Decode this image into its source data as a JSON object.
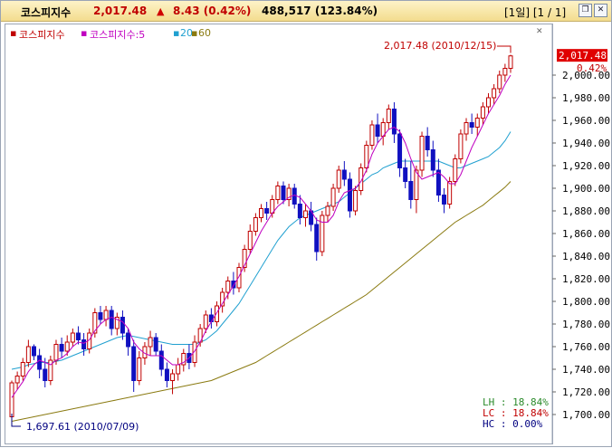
{
  "header": {
    "name": "코스피지수",
    "price": "2,017.48",
    "change": "8.43 (0.42%)",
    "volume": "488,517 (123.84%)",
    "period": "[1일] [1 / 1]"
  },
  "legend": [
    {
      "label": "코스피지수",
      "color": "#c00000"
    },
    {
      "label": "코스피지수:5",
      "color": "#c000c0"
    },
    {
      "label": "20",
      "color": "#20a0d0"
    },
    {
      "label": "60",
      "color": "#8a7a10"
    }
  ],
  "price_badge": {
    "value": "2,017.48",
    "pct": "0.42%"
  },
  "high_annotation": "2,017.48 (2010/12/15)",
  "low_annotation": "1,697.61 (2010/07/09)",
  "stats": [
    {
      "label": "LH",
      "value": "18.84%",
      "color": "#2a8a2a"
    },
    {
      "label": "LC",
      "value": "18.84%",
      "color": "#c00000"
    },
    {
      "label": "HC",
      "value": "0.00%",
      "color": "#000080"
    }
  ],
  "colors": {
    "up": "#c00000",
    "down": "#1010c0",
    "ma5": "#c000c0",
    "ma20": "#20a0d0",
    "ma60": "#8a7a10"
  },
  "chart_data": {
    "type": "candlestick",
    "yticks": [
      1700,
      1720,
      1740,
      1760,
      1780,
      1800,
      1820,
      1840,
      1860,
      1880,
      1900,
      1920,
      1940,
      1960,
      1980,
      2000
    ],
    "ytick_labels": [
      "1,700.00",
      "1,720.00",
      "1,740.00",
      "1,760.00",
      "1,780.00",
      "1,800.00",
      "1,820.00",
      "1,840.00",
      "1,860.00",
      "1,880.00",
      "1,900.00",
      "1,920.00",
      "1,940.00",
      "1,960.00",
      "1,980.00",
      "2,000.00"
    ],
    "ylim": [
      1692,
      2028
    ],
    "candles": [
      [
        1698,
        1730,
        1697,
        1728
      ],
      [
        1728,
        1738,
        1722,
        1734
      ],
      [
        1734,
        1750,
        1730,
        1746
      ],
      [
        1746,
        1766,
        1742,
        1760
      ],
      [
        1760,
        1762,
        1748,
        1752
      ],
      [
        1752,
        1758,
        1732,
        1740
      ],
      [
        1740,
        1750,
        1724,
        1730
      ],
      [
        1730,
        1752,
        1726,
        1748
      ],
      [
        1748,
        1766,
        1744,
        1762
      ],
      [
        1762,
        1768,
        1750,
        1756
      ],
      [
        1756,
        1770,
        1752,
        1764
      ],
      [
        1764,
        1776,
        1760,
        1772
      ],
      [
        1772,
        1778,
        1762,
        1766
      ],
      [
        1766,
        1772,
        1752,
        1758
      ],
      [
        1758,
        1776,
        1754,
        1772
      ],
      [
        1772,
        1794,
        1768,
        1790
      ],
      [
        1790,
        1796,
        1780,
        1784
      ],
      [
        1784,
        1796,
        1778,
        1792
      ],
      [
        1792,
        1796,
        1770,
        1776
      ],
      [
        1776,
        1790,
        1770,
        1786
      ],
      [
        1786,
        1792,
        1766,
        1772
      ],
      [
        1772,
        1776,
        1752,
        1760
      ],
      [
        1760,
        1766,
        1720,
        1730
      ],
      [
        1730,
        1756,
        1726,
        1750
      ],
      [
        1750,
        1764,
        1744,
        1760
      ],
      [
        1760,
        1774,
        1752,
        1768
      ],
      [
        1768,
        1772,
        1752,
        1756
      ],
      [
        1756,
        1762,
        1734,
        1740
      ],
      [
        1740,
        1746,
        1724,
        1730
      ],
      [
        1730,
        1740,
        1718,
        1736
      ],
      [
        1736,
        1750,
        1730,
        1744
      ],
      [
        1744,
        1758,
        1738,
        1754
      ],
      [
        1754,
        1762,
        1740,
        1746
      ],
      [
        1746,
        1770,
        1742,
        1764
      ],
      [
        1764,
        1780,
        1760,
        1776
      ],
      [
        1776,
        1792,
        1772,
        1788
      ],
      [
        1788,
        1794,
        1776,
        1782
      ],
      [
        1782,
        1800,
        1778,
        1796
      ],
      [
        1796,
        1812,
        1790,
        1808
      ],
      [
        1808,
        1822,
        1802,
        1818
      ],
      [
        1818,
        1826,
        1806,
        1812
      ],
      [
        1812,
        1834,
        1808,
        1830
      ],
      [
        1830,
        1850,
        1826,
        1846
      ],
      [
        1846,
        1868,
        1842,
        1862
      ],
      [
        1862,
        1878,
        1858,
        1874
      ],
      [
        1874,
        1886,
        1870,
        1882
      ],
      [
        1882,
        1888,
        1872,
        1878
      ],
      [
        1878,
        1894,
        1874,
        1890
      ],
      [
        1890,
        1906,
        1886,
        1902
      ],
      [
        1902,
        1906,
        1886,
        1890
      ],
      [
        1890,
        1904,
        1884,
        1900
      ],
      [
        1900,
        1904,
        1882,
        1886
      ],
      [
        1886,
        1894,
        1868,
        1874
      ],
      [
        1874,
        1886,
        1866,
        1880
      ],
      [
        1880,
        1888,
        1862,
        1868
      ],
      [
        1868,
        1874,
        1836,
        1844
      ],
      [
        1844,
        1880,
        1840,
        1876
      ],
      [
        1876,
        1888,
        1870,
        1884
      ],
      [
        1884,
        1904,
        1880,
        1900
      ],
      [
        1900,
        1920,
        1896,
        1916
      ],
      [
        1916,
        1924,
        1902,
        1908
      ],
      [
        1908,
        1914,
        1874,
        1880
      ],
      [
        1880,
        1902,
        1876,
        1898
      ],
      [
        1898,
        1922,
        1894,
        1918
      ],
      [
        1918,
        1942,
        1914,
        1938
      ],
      [
        1938,
        1960,
        1934,
        1956
      ],
      [
        1956,
        1966,
        1940,
        1946
      ],
      [
        1946,
        1962,
        1938,
        1958
      ],
      [
        1958,
        1974,
        1952,
        1970
      ],
      [
        1970,
        1976,
        1940,
        1948
      ],
      [
        1948,
        1952,
        1910,
        1918
      ],
      [
        1918,
        1926,
        1900,
        1906
      ],
      [
        1906,
        1924,
        1882,
        1890
      ],
      [
        1890,
        1920,
        1878,
        1916
      ],
      [
        1916,
        1950,
        1910,
        1946
      ],
      [
        1946,
        1954,
        1928,
        1934
      ],
      [
        1934,
        1942,
        1910,
        1916
      ],
      [
        1916,
        1926,
        1888,
        1894
      ],
      [
        1894,
        1900,
        1878,
        1886
      ],
      [
        1886,
        1910,
        1882,
        1906
      ],
      [
        1906,
        1930,
        1902,
        1926
      ],
      [
        1926,
        1952,
        1922,
        1948
      ],
      [
        1948,
        1962,
        1942,
        1958
      ],
      [
        1958,
        1966,
        1948,
        1954
      ],
      [
        1954,
        1966,
        1946,
        1962
      ],
      [
        1962,
        1976,
        1956,
        1972
      ],
      [
        1972,
        1984,
        1966,
        1980
      ],
      [
        1980,
        1992,
        1974,
        1988
      ],
      [
        1988,
        2004,
        1984,
        2000
      ],
      [
        2000,
        2010,
        1994,
        2006
      ],
      [
        2006,
        2018,
        2002,
        2017
      ]
    ],
    "ma5": [
      1715,
      1722,
      1729,
      1738,
      1744,
      1748,
      1746,
      1744,
      1748,
      1750,
      1754,
      1760,
      1764,
      1763,
      1766,
      1774,
      1780,
      1784,
      1786,
      1784,
      1782,
      1776,
      1764,
      1758,
      1754,
      1752,
      1752,
      1752,
      1748,
      1744,
      1744,
      1746,
      1750,
      1756,
      1764,
      1774,
      1782,
      1790,
      1798,
      1806,
      1814,
      1822,
      1832,
      1842,
      1852,
      1862,
      1870,
      1878,
      1884,
      1888,
      1892,
      1894,
      1892,
      1886,
      1880,
      1872,
      1870,
      1870,
      1876,
      1888,
      1896,
      1898,
      1900,
      1906,
      1916,
      1930,
      1940,
      1946,
      1952,
      1954,
      1950,
      1940,
      1926,
      1914,
      1908,
      1910,
      1912,
      1914,
      1910,
      1904,
      1904,
      1912,
      1924,
      1936,
      1946,
      1956,
      1966,
      1974,
      1982,
      1992,
      2000
    ],
    "ma20": [
      1740,
      1741,
      1742,
      1744,
      1745,
      1746,
      1746,
      1746,
      1747,
      1748,
      1750,
      1752,
      1754,
      1756,
      1758,
      1760,
      1762,
      1764,
      1766,
      1768,
      1769,
      1770,
      1769,
      1768,
      1767,
      1766,
      1765,
      1764,
      1763,
      1762,
      1762,
      1762,
      1762,
      1762,
      1764,
      1766,
      1770,
      1774,
      1780,
      1786,
      1792,
      1798,
      1806,
      1814,
      1822,
      1830,
      1838,
      1846,
      1854,
      1860,
      1866,
      1870,
      1874,
      1876,
      1878,
      1880,
      1882,
      1884,
      1886,
      1888,
      1892,
      1896,
      1900,
      1904,
      1908,
      1912,
      1914,
      1918,
      1920,
      1922,
      1924,
      1924,
      1924,
      1924,
      1924,
      1924,
      1924,
      1924,
      1922,
      1920,
      1918,
      1918,
      1920,
      1922,
      1924,
      1926,
      1928,
      1932,
      1936,
      1942,
      1950
    ],
    "ma60": [
      1694,
      1695,
      1696,
      1697,
      1698,
      1699,
      1700,
      1701,
      1702,
      1703,
      1704,
      1705,
      1706,
      1707,
      1708,
      1709,
      1710,
      1711,
      1712,
      1713,
      1714,
      1715,
      1716,
      1717,
      1718,
      1719,
      1720,
      1721,
      1722,
      1723,
      1724,
      1725,
      1726,
      1727,
      1728,
      1729,
      1730,
      1732,
      1734,
      1736,
      1738,
      1740,
      1742,
      1744,
      1746,
      1749,
      1752,
      1755,
      1758,
      1761,
      1764,
      1767,
      1770,
      1773,
      1776,
      1779,
      1782,
      1785,
      1788,
      1791,
      1794,
      1797,
      1800,
      1803,
      1806,
      1810,
      1814,
      1818,
      1822,
      1826,
      1830,
      1834,
      1838,
      1842,
      1846,
      1850,
      1854,
      1858,
      1862,
      1866,
      1870,
      1873,
      1876,
      1879,
      1882,
      1885,
      1889,
      1893,
      1897,
      1901,
      1906
    ]
  }
}
